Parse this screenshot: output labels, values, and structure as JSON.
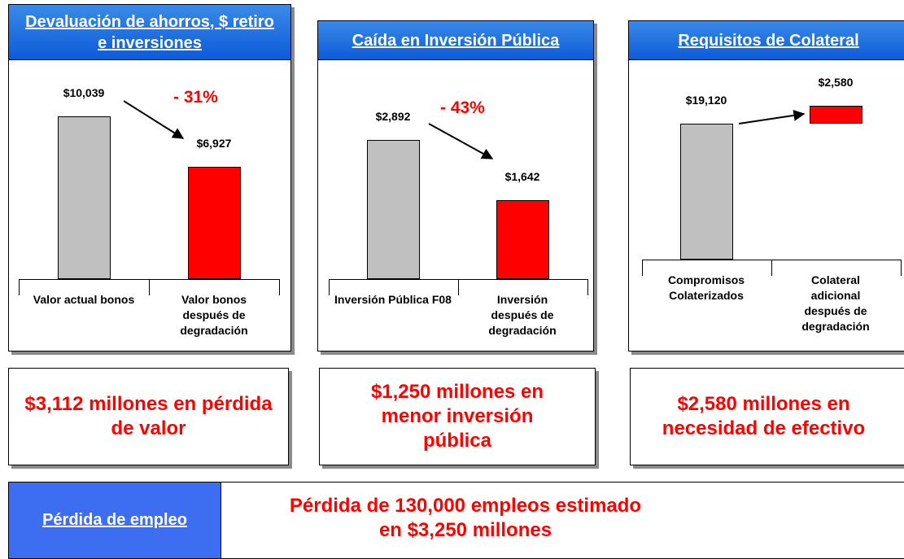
{
  "chart_data": [
    {
      "type": "bar",
      "title": "Devaluación de ahorros, $ retiro e inversiones",
      "categories": [
        "Valor actual bonos",
        "Valor bonos después de degradación"
      ],
      "values": [
        10039,
        6927
      ],
      "value_labels": [
        "$10,039",
        "$6,927"
      ],
      "colors": [
        "#c0c0c0",
        "#ff0000"
      ],
      "annotation": "- 31%"
    },
    {
      "type": "bar",
      "title": "Caída en Inversión Pública",
      "categories": [
        "Inversión Pública F08",
        "Inversión después de degradación"
      ],
      "values": [
        2892,
        1642
      ],
      "value_labels": [
        "$2,892",
        "$1,642"
      ],
      "colors": [
        "#c0c0c0",
        "#ff0000"
      ],
      "annotation": "- 43%"
    },
    {
      "type": "waterfall",
      "title": "Requisitos de Colateral",
      "categories": [
        "Compromisos Colaterizados",
        "Colateral adicional después de degradación"
      ],
      "values": [
        19120,
        2580
      ],
      "value_labels": [
        "$19,120",
        "$2,580"
      ],
      "colors": [
        "#c0c0c0",
        "#ff0000"
      ]
    }
  ],
  "summaries": [
    "$3,112 millones en pérdida de valor",
    "$1,250 millones en menor inversión pública",
    "$2,580 millones en necesidad de efectivo"
  ],
  "footer": {
    "label": "Pérdida de empleo",
    "text": "Pérdida de 130,000 empleos estimado en $3,250 millones"
  }
}
